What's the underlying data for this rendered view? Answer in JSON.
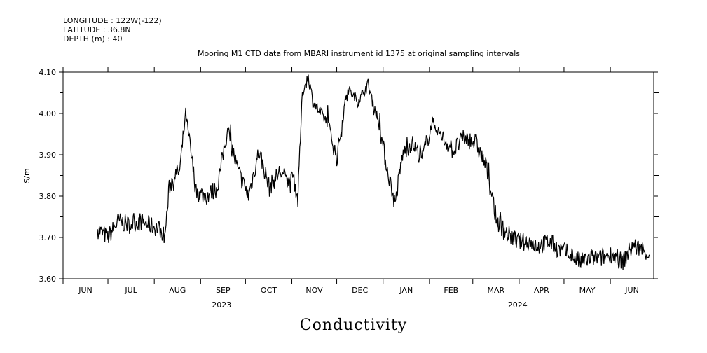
{
  "meta": {
    "longitude_label": "LONGITUDE : 122W(-122)",
    "latitude_label": "LATITUDE : 36.8N",
    "depth_label": "DEPTH (m) : 40"
  },
  "caption": "Conductivity",
  "chart_data": {
    "type": "line",
    "title": "Mooring M1 CTD data from MBARI instrument id 1375 at original sampling intervals",
    "xlabel": "",
    "ylabel": "S/m",
    "ylim": [
      3.6,
      4.1
    ],
    "yticks": [
      "3.60",
      "3.70",
      "3.80",
      "3.90",
      "4.00",
      "4.10"
    ],
    "xlim": [
      "2023-06-01",
      "2024-06-30"
    ],
    "month_labels": [
      "JUN",
      "JUL",
      "AUG",
      "SEP",
      "OCT",
      "NOV",
      "DEC",
      "JAN",
      "FEB",
      "MAR",
      "APR",
      "MAY",
      "JUN"
    ],
    "year_labels": [
      {
        "label": "2023",
        "date": "2023-09-15"
      },
      {
        "label": "2024",
        "date": "2024-03-31"
      }
    ],
    "grid": false,
    "series": [
      {
        "x": [
          "2023-06-24",
          "2023-07-01",
          "2023-07-08",
          "2023-07-15",
          "2023-07-22",
          "2023-07-29",
          "2023-08-05",
          "2023-08-08",
          "2023-08-11",
          "2023-08-14",
          "2023-08-18",
          "2023-08-22",
          "2023-08-29",
          "2023-09-05",
          "2023-09-12",
          "2023-09-19",
          "2023-09-26",
          "2023-10-03",
          "2023-10-10",
          "2023-10-17",
          "2023-10-24",
          "2023-10-31",
          "2023-11-02",
          "2023-11-05",
          "2023-11-08",
          "2023-11-12",
          "2023-11-15",
          "2023-11-20",
          "2023-11-25",
          "2023-12-01",
          "2023-12-08",
          "2023-12-15",
          "2023-12-22",
          "2023-12-29",
          "2024-01-03",
          "2024-01-09",
          "2024-01-14",
          "2024-01-20",
          "2024-01-27",
          "2024-02-03",
          "2024-02-10",
          "2024-02-17",
          "2024-02-24",
          "2024-03-03",
          "2024-03-10",
          "2024-03-17",
          "2024-03-24",
          "2024-03-31",
          "2024-04-07",
          "2024-04-14",
          "2024-04-21",
          "2024-04-28",
          "2024-05-05",
          "2024-05-12",
          "2024-05-19",
          "2024-05-26",
          "2024-06-02",
          "2024-06-09",
          "2024-06-16",
          "2024-06-23",
          "2024-06-27"
        ],
        "y": [
          3.72,
          3.7,
          3.74,
          3.73,
          3.74,
          3.73,
          3.72,
          3.7,
          3.82,
          3.85,
          3.86,
          4.0,
          3.81,
          3.8,
          3.82,
          3.96,
          3.86,
          3.8,
          3.91,
          3.82,
          3.86,
          3.83,
          3.85,
          3.79,
          4.05,
          4.09,
          4.03,
          4.0,
          3.98,
          3.89,
          4.06,
          4.03,
          4.07,
          3.98,
          3.88,
          3.78,
          3.9,
          3.93,
          3.89,
          3.98,
          3.94,
          3.91,
          3.94,
          3.93,
          3.87,
          3.74,
          3.71,
          3.69,
          3.69,
          3.68,
          3.69,
          3.67,
          3.66,
          3.64,
          3.65,
          3.65,
          3.66,
          3.64,
          3.68,
          3.67,
          3.66
        ]
      }
    ]
  }
}
